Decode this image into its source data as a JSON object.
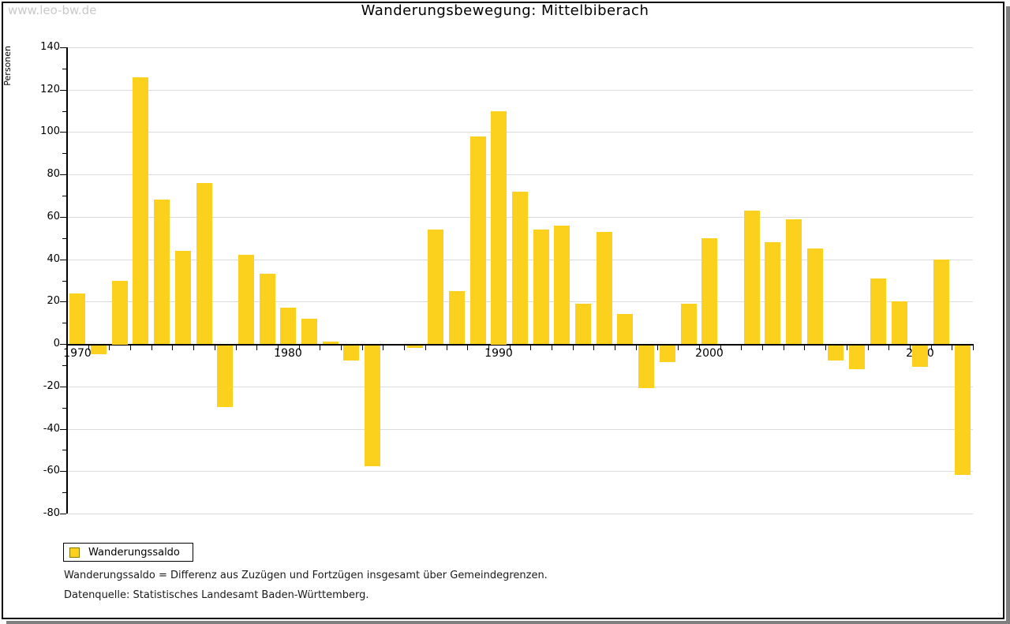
{
  "watermark": "www.leo-bw.de",
  "title": "Wanderungsbewegung: Mittelbiberach",
  "y_axis_label": "Personen",
  "legend": {
    "label": "Wanderungssaldo"
  },
  "footnotes": [
    "Wanderungssaldo = Differenz aus Zuzügen und Fortzügen insgesamt über Gemeindegrenzen.",
    "Datenquelle: Statistisches Landesamt Baden-Württemberg."
  ],
  "colors": {
    "bar": "#FBD11D",
    "grid": "#DCDCDC",
    "axis": "#000000",
    "swatch_border": "#8A7A00",
    "watermark": "#C9C9C9",
    "shadow": "#7F7F7F"
  },
  "chart_data": {
    "type": "bar",
    "title": "Wanderungsbewegung: Mittelbiberach",
    "xlabel": "",
    "ylabel": "Personen",
    "series_name": "Wanderungssaldo",
    "ylim": [
      -80,
      140
    ],
    "ytick_major_step": 20,
    "ytick_minor_step": 10,
    "grid": true,
    "legend_position": "bottom-left",
    "x_labeled_ticks": [
      1970,
      1980,
      1990,
      2000,
      2010
    ],
    "x": [
      1970,
      1971,
      1972,
      1973,
      1974,
      1975,
      1976,
      1977,
      1978,
      1979,
      1980,
      1981,
      1982,
      1983,
      1984,
      1985,
      1986,
      1987,
      1988,
      1989,
      1990,
      1991,
      1992,
      1993,
      1994,
      1995,
      1996,
      1997,
      1998,
      1999,
      2000,
      2001,
      2002,
      2003,
      2004,
      2005,
      2006,
      2007,
      2008,
      2009,
      2010,
      2011,
      2012
    ],
    "values": [
      24,
      -4,
      30,
      126,
      68,
      44,
      76,
      -29,
      42,
      33,
      17,
      12,
      1,
      -7,
      -57,
      0,
      -1,
      54,
      25,
      98,
      110,
      72,
      54,
      56,
      19,
      53,
      14,
      -20,
      -8,
      19,
      50,
      0,
      63,
      48,
      59,
      45,
      -7,
      -11,
      31,
      20,
      -10,
      40,
      -61
    ]
  }
}
